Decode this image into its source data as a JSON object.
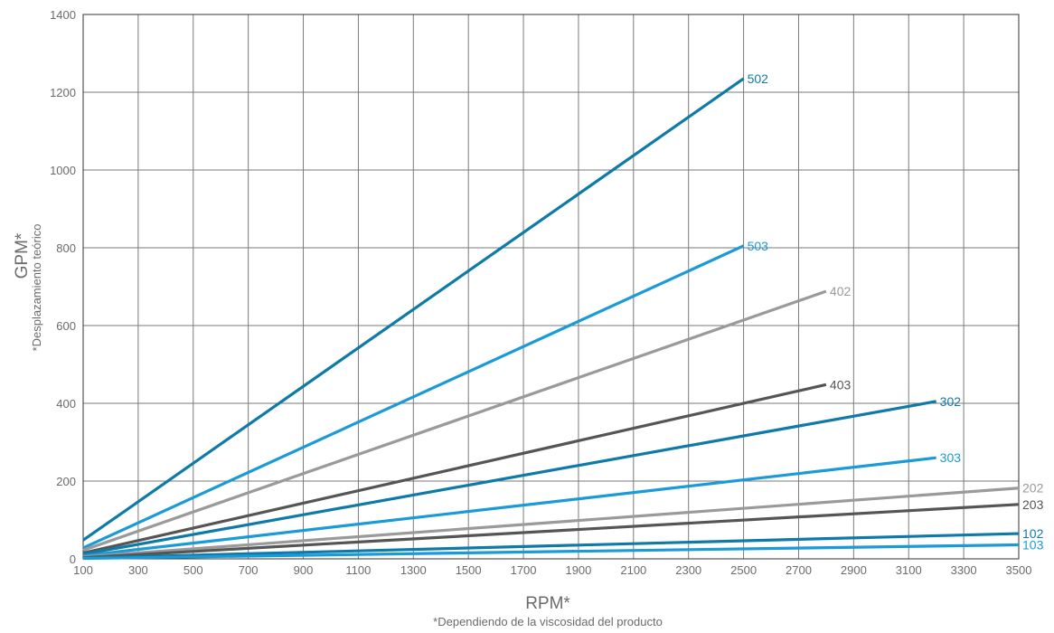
{
  "chart_data": {
    "type": "line",
    "xlabel": "RPM*",
    "xlabel_note": "*Dependiendo de la viscosidad del producto",
    "ylabel": "GPM*",
    "ylabel_note": "*Desplazamiento teórico",
    "xlim": [
      100,
      3500
    ],
    "ylim": [
      0,
      1400
    ],
    "x_ticks": [
      100,
      300,
      500,
      700,
      900,
      1100,
      1300,
      1500,
      1700,
      1900,
      2100,
      2300,
      2500,
      2700,
      2900,
      3100,
      3300,
      3500
    ],
    "y_ticks": [
      0,
      200,
      400,
      600,
      800,
      1000,
      1200,
      1400
    ],
    "grid": true,
    "series": [
      {
        "name": "502",
        "color": "#0f7aa8",
        "points": [
          [
            100,
            48
          ],
          [
            2500,
            1235
          ]
        ]
      },
      {
        "name": "503",
        "color": "#1a9ad6",
        "points": [
          [
            100,
            28
          ],
          [
            2500,
            805
          ]
        ]
      },
      {
        "name": "402",
        "color": "#9a9a9a",
        "points": [
          [
            100,
            22
          ],
          [
            2800,
            688
          ]
        ]
      },
      {
        "name": "403",
        "color": "#555555",
        "points": [
          [
            100,
            15
          ],
          [
            2800,
            448
          ]
        ]
      },
      {
        "name": "302",
        "color": "#0f7aa8",
        "points": [
          [
            100,
            12
          ],
          [
            3200,
            405
          ]
        ]
      },
      {
        "name": "303",
        "color": "#1a9ad6",
        "points": [
          [
            100,
            8
          ],
          [
            3200,
            260
          ]
        ]
      },
      {
        "name": "202",
        "color": "#9a9a9a",
        "points": [
          [
            100,
            5
          ],
          [
            3500,
            182
          ]
        ]
      },
      {
        "name": "203",
        "color": "#555555",
        "points": [
          [
            100,
            3
          ],
          [
            3500,
            140
          ]
        ]
      },
      {
        "name": "102",
        "color": "#0f7aa8",
        "points": [
          [
            100,
            2
          ],
          [
            3500,
            65
          ]
        ]
      },
      {
        "name": "103",
        "color": "#1a9ad6",
        "points": [
          [
            100,
            1
          ],
          [
            3500,
            36
          ]
        ]
      }
    ]
  }
}
